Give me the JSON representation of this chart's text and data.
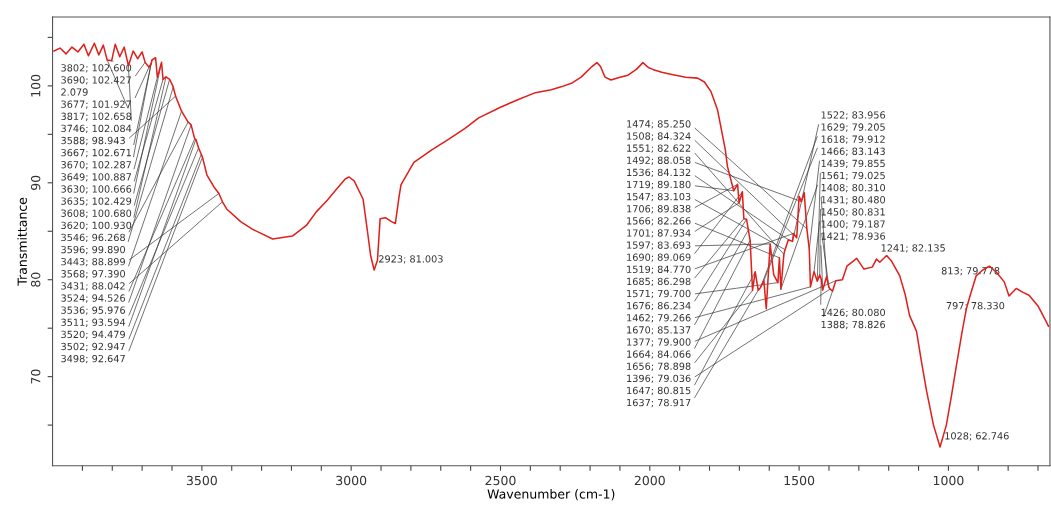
{
  "chart_data": {
    "type": "line",
    "xlabel": "Wavenumber (cm-1)",
    "ylabel": "Transmittance",
    "xlim": [
      4000,
      660
    ],
    "ylim": [
      60.8,
      107.1
    ],
    "xticks": [
      {
        "value": 3900,
        "label": null
      },
      {
        "value": 3800,
        "label": null
      },
      {
        "value": 3700,
        "label": null
      },
      {
        "value": 3600,
        "label": null
      },
      3500,
      {
        "value": 3400,
        "label": null
      },
      {
        "value": 3300,
        "label": null
      },
      {
        "value": 3200,
        "label": null
      },
      {
        "value": 3100,
        "label": null
      },
      3000,
      {
        "value": 2900,
        "label": null
      },
      {
        "value": 2800,
        "label": null
      },
      {
        "value": 2700,
        "label": null
      },
      {
        "value": 2600,
        "label": null
      },
      2500,
      {
        "value": 2400,
        "label": null
      },
      {
        "value": 2300,
        "label": null
      },
      {
        "value": 2200,
        "label": null
      },
      {
        "value": 2100,
        "label": null
      },
      2000,
      {
        "value": 1900,
        "label": null
      },
      {
        "value": 1800,
        "label": null
      },
      {
        "value": 1700,
        "label": null
      },
      {
        "value": 1600,
        "label": null
      },
      1500,
      {
        "value": 1400,
        "label": null
      },
      {
        "value": 1300,
        "label": null
      },
      {
        "value": 1200,
        "label": null
      },
      {
        "value": 1100,
        "label": null
      },
      1000,
      {
        "value": 900,
        "label": null
      },
      {
        "value": 800,
        "label": null
      },
      {
        "value": 700,
        "label": null
      }
    ],
    "yticks": [
      {
        "value": 65,
        "label": null
      },
      70,
      {
        "value": 75,
        "label": null
      },
      80,
      {
        "value": 85,
        "label": null
      },
      90,
      {
        "value": 95,
        "label": null
      },
      100,
      {
        "value": 105,
        "label": null
      }
    ],
    "x": [
      3995,
      3975,
      3955,
      3935,
      3915,
      3895,
      3880,
      3860,
      3845,
      3830,
      3817,
      3802,
      3790,
      3775,
      3760,
      3746,
      3730,
      3715,
      3700,
      3690,
      3677,
      3670,
      3667,
      3655,
      3649,
      3635,
      3630,
      3620,
      3608,
      3596,
      3588,
      3568,
      3546,
      3536,
      3524,
      3520,
      3511,
      3502,
      3498,
      3483,
      3460,
      3443,
      3431,
      3417,
      3370,
      3330,
      3263,
      3197,
      3150,
      3117,
      3080,
      3050,
      3020,
      3007,
      2990,
      2960,
      2945,
      2935,
      2923,
      2912,
      2903,
      2885,
      2865,
      2852,
      2840,
      2833,
      2790,
      2730,
      2673,
      2620,
      2573,
      2500,
      2440,
      2383,
      2330,
      2297,
      2260,
      2230,
      2197,
      2177,
      2165,
      2150,
      2130,
      2100,
      2073,
      2045,
      2023,
      2005,
      1990,
      1960,
      1930,
      1880,
      1840,
      1817,
      1795,
      1773,
      1747,
      1740,
      1730,
      1719,
      1706,
      1701,
      1690,
      1685,
      1676,
      1670,
      1664,
      1656,
      1647,
      1637,
      1629,
      1618,
      1610,
      1597,
      1585,
      1571,
      1566,
      1561,
      1551,
      1547,
      1536,
      1522,
      1519,
      1508,
      1500,
      1492,
      1483,
      1474,
      1466,
      1462,
      1450,
      1439,
      1431,
      1426,
      1421,
      1408,
      1400,
      1396,
      1388,
      1377,
      1355,
      1340,
      1307,
      1283,
      1255,
      1241,
      1230,
      1207,
      1190,
      1163,
      1145,
      1130,
      1107,
      1090,
      1073,
      1050,
      1028,
      1007,
      990,
      973,
      955,
      940,
      925,
      907,
      885,
      863,
      840,
      813,
      797,
      773,
      750,
      730,
      700,
      673,
      665
    ],
    "series": [
      {
        "color": "#e0201c",
        "values": [
          103.6,
          103.9,
          103.3,
          104.0,
          103.5,
          104.3,
          103.1,
          104.4,
          103.2,
          104.2,
          102.658,
          102.6,
          104.3,
          103.0,
          104.0,
          102.084,
          103.6,
          102.8,
          103.5,
          102.427,
          101.927,
          102.287,
          102.671,
          102.9,
          100.887,
          102.429,
          100.666,
          100.93,
          100.68,
          99.89,
          98.943,
          97.39,
          96.268,
          95.976,
          94.526,
          94.479,
          93.594,
          92.947,
          92.647,
          90.8,
          89.6,
          88.899,
          88.042,
          87.3,
          86.0,
          85.2,
          84.2,
          84.5,
          85.6,
          87.0,
          88.2,
          89.3,
          90.4,
          90.6,
          90.2,
          88.3,
          84.9,
          82.5,
          81.0,
          82.0,
          86.3,
          86.4,
          86.0,
          85.8,
          88.5,
          89.8,
          92.1,
          93.4,
          94.5,
          95.6,
          96.7,
          97.8,
          98.6,
          99.3,
          99.6,
          99.9,
          100.3,
          100.9,
          101.9,
          102.4,
          102.0,
          100.9,
          100.6,
          100.9,
          101.1,
          101.7,
          102.4,
          101.9,
          101.7,
          101.4,
          101.2,
          100.9,
          100.8,
          100.4,
          99.4,
          97.5,
          93.4,
          91.7,
          90.5,
          89.18,
          89.838,
          87.934,
          89.069,
          86.298,
          86.234,
          85.137,
          84.066,
          78.898,
          80.815,
          78.917,
          79.205,
          79.912,
          77.0,
          83.693,
          80.5,
          79.7,
          82.266,
          79.025,
          82.622,
          83.103,
          84.132,
          83.956,
          84.77,
          84.324,
          88.6,
          88.058,
          89.0,
          85.25,
          83.143,
          79.266,
          80.831,
          79.855,
          80.48,
          80.08,
          78.936,
          80.31,
          79.187,
          79.036,
          78.826,
          79.9,
          80.0,
          81.4,
          82.2,
          81.1,
          81.3,
          82.135,
          81.8,
          82.5,
          81.9,
          80.4,
          78.5,
          76.3,
          74.7,
          71.5,
          68.5,
          65.0,
          62.746,
          65.0,
          68.0,
          71.2,
          74.5,
          77.0,
          78.6,
          80.4,
          81.0,
          81.4,
          80.8,
          79.778,
          78.33,
          79.1,
          78.7,
          78.4,
          77.3,
          75.7,
          75.2
        ]
      }
    ],
    "annotations": [
      {
        "text": "3802; 102.600",
        "x": 3802,
        "y": 102.6
      },
      {
        "text": "3690; 102.427",
        "x": 3690,
        "y": 102.427
      },
      "2.079",
      {
        "text": "3677; 101.927",
        "x": 3677,
        "y": 101.927
      },
      {
        "text": "3817; 102.658",
        "x": 3817,
        "y": 102.658
      },
      {
        "text": "3746; 102.084",
        "x": 3746,
        "y": 102.084
      },
      {
        "text": "3588; 98.943",
        "x": 3588,
        "y": 98.943
      },
      {
        "text": "3667; 102.671",
        "x": 3667,
        "y": 102.671
      },
      {
        "text": "3670; 102.287",
        "x": 3670,
        "y": 102.287
      },
      {
        "text": "3649; 100.887",
        "x": 3649,
        "y": 100.887
      },
      {
        "text": "3630; 100.666",
        "x": 3630,
        "y": 100.666
      },
      {
        "text": "3635; 102.429",
        "x": 3635,
        "y": 102.429
      },
      {
        "text": "3608; 100.680",
        "x": 3608,
        "y": 100.68
      },
      {
        "text": "3620; 100.930",
        "x": 3620,
        "y": 100.93
      },
      {
        "text": "3546; 96.268",
        "x": 3546,
        "y": 96.268
      },
      {
        "text": "3596; 99.890",
        "x": 3596,
        "y": 99.89
      },
      {
        "text": "3443; 88.899",
        "x": 3443,
        "y": 88.899
      },
      {
        "text": "3568; 97.390",
        "x": 3568,
        "y": 97.39
      },
      {
        "text": "3431; 88.042",
        "x": 3431,
        "y": 88.042
      },
      {
        "text": "3524; 94.526",
        "x": 3524,
        "y": 94.526
      },
      {
        "text": "3536; 95.976",
        "x": 3536,
        "y": 95.976
      },
      {
        "text": "3511; 93.594",
        "x": 3511,
        "y": 93.594
      },
      {
        "text": "3520; 94.479",
        "x": 3520,
        "y": 94.479
      },
      {
        "text": "3502; 92.947",
        "x": 3502,
        "y": 92.947
      },
      {
        "text": "3498; 92.647",
        "x": 3498,
        "y": 92.647
      },
      {
        "text": "2923; 81.003",
        "x": 2923,
        "y": 81.003
      },
      {
        "text": "1474; 85.250",
        "x": 1474,
        "y": 85.25
      },
      {
        "text": "1508; 84.324",
        "x": 1508,
        "y": 84.324
      },
      {
        "text": "1551; 82.622",
        "x": 1551,
        "y": 82.622
      },
      {
        "text": "1492; 88.058",
        "x": 1492,
        "y": 88.058
      },
      {
        "text": "1536; 84.132",
        "x": 1536,
        "y": 84.132
      },
      {
        "text": "1719; 89.180",
        "x": 1719,
        "y": 89.18
      },
      {
        "text": "1547; 83.103",
        "x": 1547,
        "y": 83.103
      },
      {
        "text": "1706; 89.838",
        "x": 1706,
        "y": 89.838
      },
      {
        "text": "1566; 82.266",
        "x": 1566,
        "y": 82.266
      },
      {
        "text": "1701; 87.934",
        "x": 1701,
        "y": 87.934
      },
      {
        "text": "1597; 83.693",
        "x": 1597,
        "y": 83.693
      },
      {
        "text": "1690; 89.069",
        "x": 1690,
        "y": 89.069
      },
      {
        "text": "1519; 84.770",
        "x": 1519,
        "y": 84.77
      },
      {
        "text": "1685; 86.298",
        "x": 1685,
        "y": 86.298
      },
      {
        "text": "1571; 79.700",
        "x": 1571,
        "y": 79.7
      },
      {
        "text": "1676; 86.234",
        "x": 1676,
        "y": 86.234
      },
      {
        "text": "1462; 79.266",
        "x": 1462,
        "y": 79.266
      },
      {
        "text": "1241; 82.135",
        "x": 1241,
        "y": 82.135
      },
      {
        "text": "1670; 85.137",
        "x": 1670,
        "y": 85.137
      },
      {
        "text": "1377; 79.900",
        "x": 1377,
        "y": 79.9
      },
      {
        "text": "1664; 84.066",
        "x": 1664,
        "y": 84.066
      },
      {
        "text": "1656; 78.898",
        "x": 1656,
        "y": 78.898
      },
      {
        "text": "1396; 79.036",
        "x": 1396,
        "y": 79.036
      },
      {
        "text": "1647; 80.815",
        "x": 1647,
        "y": 80.815
      },
      {
        "text": "1637; 78.917",
        "x": 1637,
        "y": 78.917
      },
      {
        "text": "1522; 83.956",
        "x": 1522,
        "y": 83.956
      },
      {
        "text": "1629; 79.205",
        "x": 1629,
        "y": 79.205
      },
      {
        "text": "1618; 79.912",
        "x": 1618,
        "y": 79.912
      },
      {
        "text": "1466; 83.143",
        "x": 1466,
        "y": 83.143
      },
      {
        "text": "1439; 79.855",
        "x": 1439,
        "y": 79.855
      },
      {
        "text": "1561; 79.025",
        "x": 1561,
        "y": 79.025
      },
      {
        "text": "1408; 80.310",
        "x": 1408,
        "y": 80.31
      },
      {
        "text": "1431; 80.480",
        "x": 1431,
        "y": 80.48
      },
      {
        "text": "1450; 80.831",
        "x": 1450,
        "y": 80.831
      },
      {
        "text": "1400; 79.187",
        "x": 1400,
        "y": 79.187
      },
      {
        "text": "1421; 78.936",
        "x": 1421,
        "y": 78.936
      },
      {
        "text": "1426; 80.080",
        "x": 1426,
        "y": 80.08
      },
      {
        "text": "1388; 78.826",
        "x": 1388,
        "y": 78.826
      },
      {
        "text": "1028; 62.746",
        "x": 1028,
        "y": 62.746
      },
      {
        "text": "813; 79.778",
        "x": 813,
        "y": 79.778
      },
      {
        "text": "797; 78.330",
        "x": 797,
        "y": 78.33
      }
    ]
  }
}
